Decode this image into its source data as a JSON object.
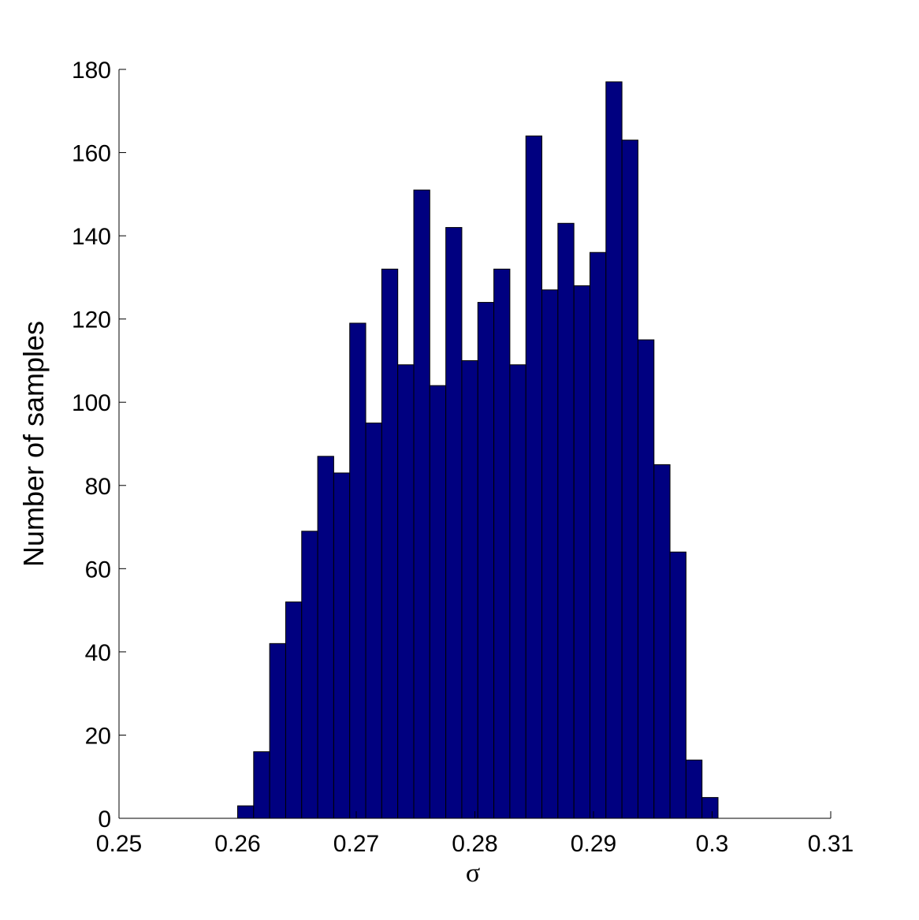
{
  "chart_data": {
    "type": "histogram",
    "x_label": "σ",
    "y_label": "Number of samples",
    "bins": [
      0.26,
      0.26135,
      0.2627,
      0.26405,
      0.2654,
      0.26675,
      0.2681,
      0.26945,
      0.2708,
      0.27215,
      0.2735,
      0.27485,
      0.2762,
      0.27755,
      0.2789,
      0.28025,
      0.2816,
      0.28295,
      0.2843,
      0.28565,
      0.287,
      0.28835,
      0.2897,
      0.29105,
      0.2924,
      0.29375,
      0.2951,
      0.29645,
      0.2978,
      0.29915,
      0.3005
    ],
    "values": [
      3,
      16,
      42,
      52,
      69,
      87,
      83,
      119,
      95,
      132,
      109,
      151,
      104,
      142,
      110,
      124,
      132,
      109,
      164,
      127,
      143,
      128,
      136,
      177,
      163,
      115,
      85,
      64,
      14,
      5
    ],
    "color": "#000080",
    "xlim": [
      0.25,
      0.31
    ],
    "xticks": [
      0.25,
      0.26,
      0.27,
      0.28,
      0.29,
      0.3,
      0.31
    ],
    "ylim": [
      0,
      180
    ],
    "yticks": [
      0,
      20,
      40,
      60,
      80,
      100,
      120,
      140,
      160,
      180
    ]
  }
}
